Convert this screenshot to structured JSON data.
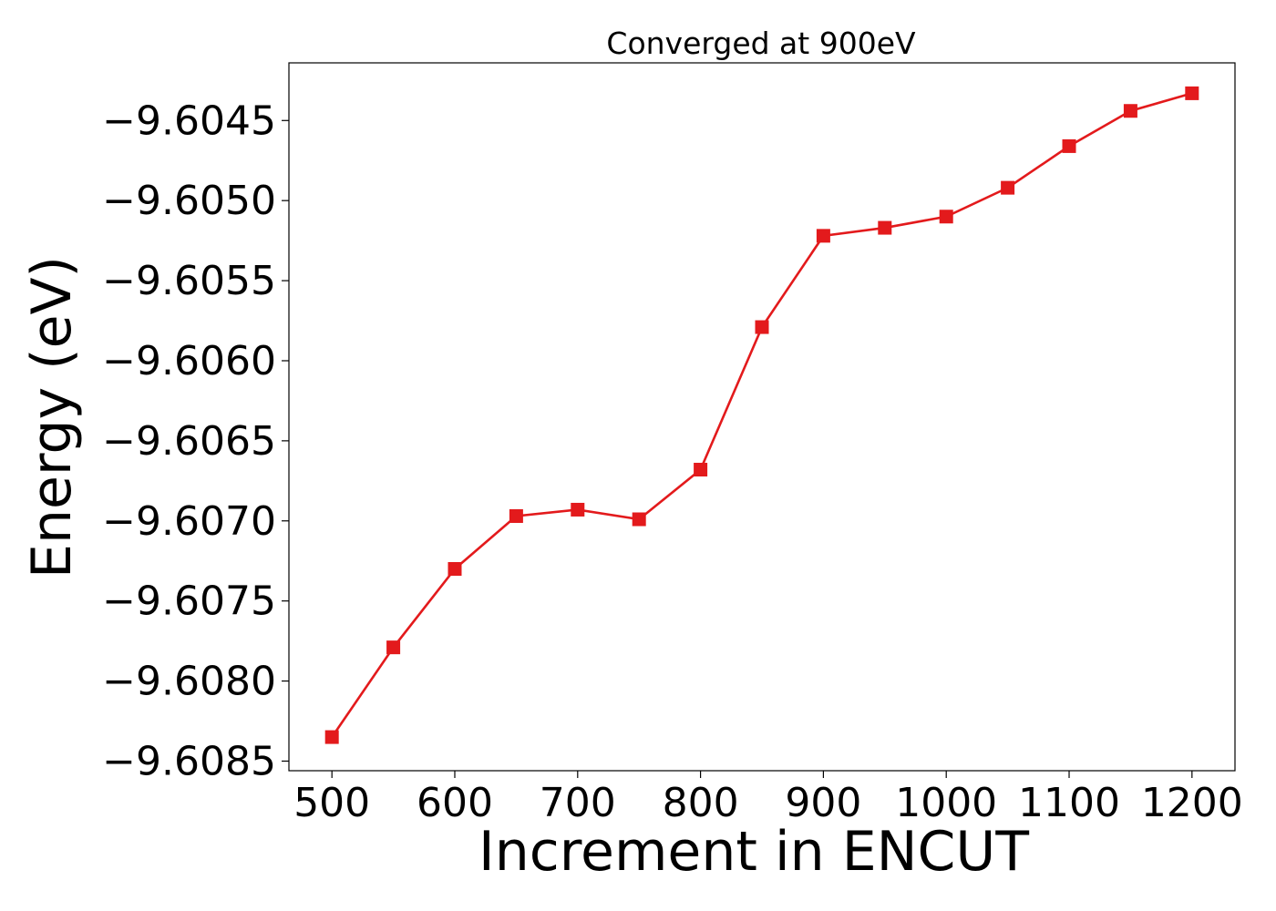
{
  "chart_data": {
    "type": "line",
    "title": "Converged at 900eV",
    "xlabel": "Increment in ENCUT",
    "ylabel": "Energy (eV)",
    "x": [
      500,
      550,
      600,
      650,
      700,
      750,
      800,
      850,
      900,
      950,
      1000,
      1050,
      1100,
      1150,
      1200
    ],
    "series": [
      {
        "values": [
          -9.60835,
          -9.60779,
          -9.6073,
          -9.60697,
          -9.60693,
          -9.60699,
          -9.60668,
          -9.60579,
          -9.60522,
          -9.60517,
          -9.6051,
          -9.60492,
          -9.60466,
          -9.60444,
          -9.60433
        ],
        "color": "#e31a1c",
        "marker": "square"
      }
    ],
    "xticks": [
      500,
      600,
      700,
      800,
      900,
      1000,
      1100,
      1200
    ],
    "yticks": [
      -9.6045,
      -9.605,
      -9.6055,
      -9.606,
      -9.6065,
      -9.607,
      -9.6075,
      -9.608,
      -9.6085
    ],
    "ytick_labels": [
      "−9.6045",
      "−9.6050",
      "−9.6055",
      "−9.6060",
      "−9.6065",
      "−9.6070",
      "−9.6075",
      "−9.6080",
      "−9.6085"
    ],
    "xlim": [
      465,
      1235
    ],
    "ylim": [
      -9.60856,
      -9.60414
    ],
    "grid": false,
    "legend": "none"
  }
}
